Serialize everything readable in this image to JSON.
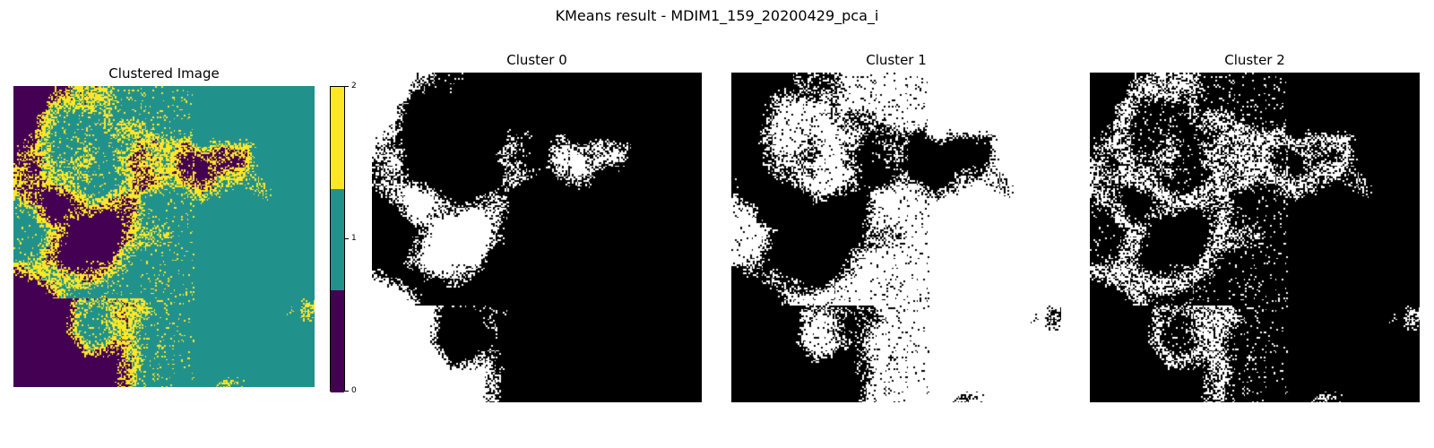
{
  "figure": {
    "title": "KMeans result - MDIM1_159_20200429_pca_i"
  },
  "clustered_panel": {
    "title": "Clustered Image",
    "colors": [
      "#440154",
      "#21918c",
      "#fde725"
    ]
  },
  "colorbar": {
    "ticks": [
      "0",
      "1",
      "2"
    ],
    "colors": [
      "#440154",
      "#21918c",
      "#fde725"
    ]
  },
  "cluster_panels": [
    {
      "title": "Cluster 0"
    },
    {
      "title": "Cluster 1"
    },
    {
      "title": "Cluster 2"
    }
  ]
}
